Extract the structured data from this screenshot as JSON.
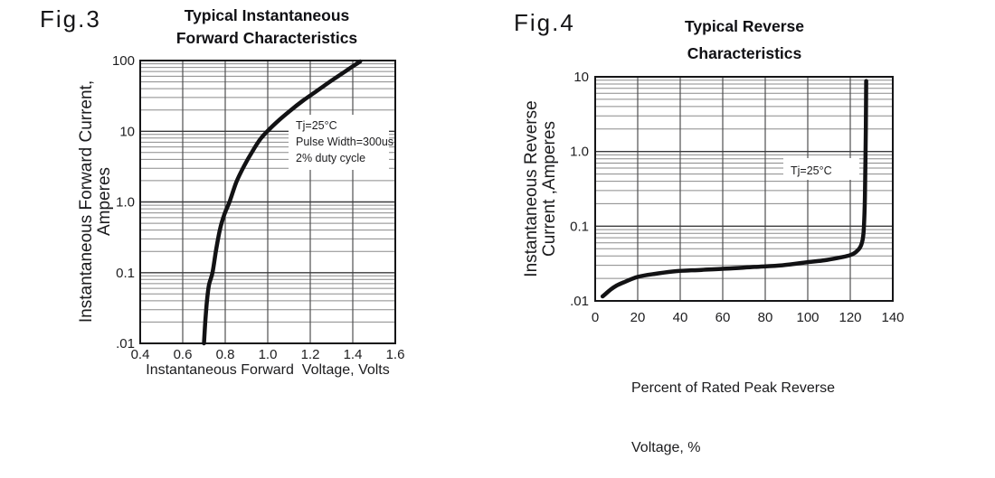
{
  "page": {
    "background": "#ffffff"
  },
  "colors": {
    "background": "#ffffff",
    "text": "#1d1d1f",
    "title": "#101014",
    "grid_minor": "#8a8a8a",
    "grid_major": "#3b3b3d",
    "grid_vertical": "#4f4f51",
    "frame": "#151517",
    "curve": "#121214"
  },
  "fig3": {
    "fig_label": "Fig.3",
    "title_line1": "Typical Instantaneous",
    "title_line2": "Forward Characteristics",
    "y_axis_title_line1": "Instantaneous Forward Current,",
    "y_axis_title_line2": "Amperes",
    "x_axis_title": "Instantaneous Forward  Voltage, Volts"
  },
  "fig4": {
    "fig_label": "Fig.4",
    "title_line1": "Typical Reverse",
    "title_line2": "Characteristics",
    "y_axis_title_line1": "Instantaneous Reverse",
    "y_axis_title_line2": "Current ,Amperes",
    "x_axis_title_line1": "Percent of Rated Peak Reverse",
    "x_axis_title_line2": "Voltage, %"
  },
  "chart_data": [
    {
      "id": "fig3",
      "type": "line",
      "title": "Typical Instantaneous Forward Characteristics",
      "xlabel": "Instantaneous Forward Voltage, Volts",
      "ylabel": "Instantaneous Forward Current, Amperes",
      "x_scale": "linear",
      "y_scale": "log",
      "xlim": [
        0.4,
        1.6
      ],
      "ylim": [
        0.01,
        100
      ],
      "x_ticks": [
        "0.4",
        "0.6",
        "0.8",
        "1.0",
        "1.2",
        "1.4",
        "1.6"
      ],
      "x_tick_values": [
        0.4,
        0.6,
        0.8,
        1.0,
        1.2,
        1.4,
        1.6
      ],
      "y_ticks": [
        "100",
        "10",
        "1.0",
        "0.1",
        ".01"
      ],
      "y_tick_values": [
        100,
        10,
        1,
        0.1,
        0.01
      ],
      "grid": true,
      "legend": "none",
      "annotation": {
        "lines": [
          "Tj=25°C",
          "Pulse Width=300us",
          "2% duty cycle"
        ]
      },
      "series": [
        {
          "name": "typical instantaneous forward current",
          "x": [
            0.7,
            0.706,
            0.714,
            0.724,
            0.74,
            0.757,
            0.776,
            0.797,
            0.82,
            0.852,
            0.888,
            0.928,
            0.966,
            1.005,
            1.055,
            1.105,
            1.165,
            1.23,
            1.3,
            1.37,
            1.435
          ],
          "y": [
            0.01,
            0.02,
            0.04,
            0.068,
            0.1,
            0.21,
            0.42,
            0.68,
            1.0,
            1.9,
            3.2,
            5.2,
            7.8,
            10.5,
            14.5,
            19.5,
            27,
            37,
            52,
            72,
            97
          ]
        }
      ]
    },
    {
      "id": "fig4",
      "type": "line",
      "title": "Typical Reverse Characteristics",
      "xlabel": "Percent of Rated Peak Reverse Voltage, %",
      "ylabel": "Instantaneous Reverse Current, Amperes",
      "x_scale": "linear",
      "y_scale": "log",
      "xlim": [
        0,
        140
      ],
      "ylim": [
        0.01,
        10
      ],
      "x_ticks": [
        "0",
        "20",
        "40",
        "60",
        "80",
        "100",
        "120",
        "140"
      ],
      "x_tick_values": [
        0,
        20,
        40,
        60,
        80,
        100,
        120,
        140
      ],
      "y_ticks": [
        "10",
        "1.0",
        "0.1",
        ".01"
      ],
      "y_tick_values": [
        10,
        1,
        0.1,
        0.01
      ],
      "grid": true,
      "legend": "none",
      "annotation": {
        "lines": [
          "Tj=25°C"
        ]
      },
      "series": [
        {
          "name": "typical instantaneous reverse current",
          "x": [
            3.5,
            5,
            7,
            10,
            14,
            20,
            28,
            38,
            50,
            62,
            75,
            88,
            100,
            108,
            115,
            120,
            123,
            125,
            126.2,
            126.9,
            127.3,
            127.5
          ],
          "y": [
            0.0115,
            0.0125,
            0.014,
            0.016,
            0.018,
            0.021,
            0.023,
            0.025,
            0.026,
            0.027,
            0.0285,
            0.03,
            0.033,
            0.035,
            0.038,
            0.041,
            0.046,
            0.055,
            0.08,
            0.25,
            2.0,
            8.8
          ]
        }
      ]
    }
  ]
}
